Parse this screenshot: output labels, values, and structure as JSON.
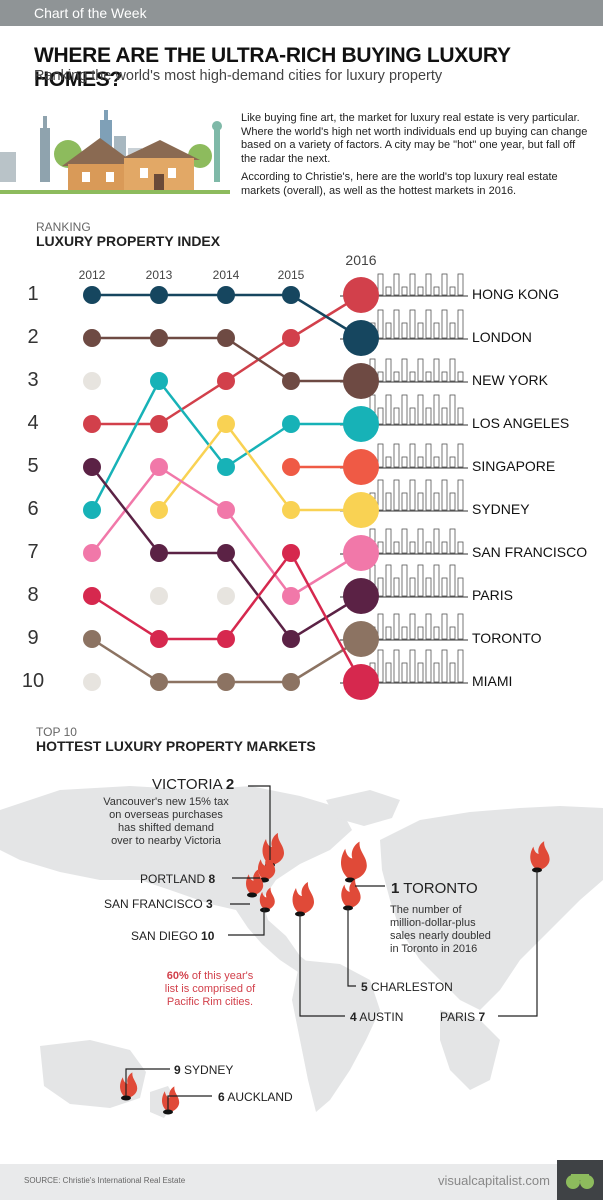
{
  "tag": "Chart of the Week",
  "title": "WHERE ARE THE ULTRA-RICH BUYING LUXURY HOMES?",
  "subtitle": "Ranking the world's most high-demand cities for luxury property",
  "intro": [
    "Like buying fine art, the market for luxury real estate is very particular. Where the world's high net worth individuals end up buying can change based on a variety of factors. A city may be \"hot\" one year, but fall off the radar the next.",
    "According to Christie's, here are the world's top luxury real estate markets (overall), as well as the hottest markets in 2016."
  ],
  "section1": {
    "kicker": "RANKING",
    "title": "LUXURY PROPERTY INDEX"
  },
  "section2": {
    "kicker": "TOP 10",
    "title": "HOTTEST LUXURY PROPERTY MARKETS"
  },
  "chart_data": [
    {
      "type": "line",
      "title": "LUXURY PROPERTY INDEX",
      "x": [
        "2012",
        "2013",
        "2014",
        "2015",
        "2016"
      ],
      "ranks": [
        "1",
        "2",
        "3",
        "4",
        "5",
        "6",
        "7",
        "8",
        "9",
        "10"
      ],
      "ylim": [
        1,
        10
      ],
      "series": [
        {
          "name": "HONG KONG",
          "color": "#d2404b",
          "values": [
            4,
            4,
            3,
            2,
            1
          ]
        },
        {
          "name": "LONDON",
          "color": "#16465f",
          "values": [
            1,
            1,
            1,
            1,
            2
          ]
        },
        {
          "name": "NEW YORK",
          "color": "#6e4a43",
          "values": [
            2,
            2,
            2,
            3,
            3
          ]
        },
        {
          "name": "LOS ANGELES",
          "color": "#17b2b7",
          "values": [
            6,
            3,
            5,
            4,
            4
          ]
        },
        {
          "name": "SINGAPORE",
          "color": "#ef5a45",
          "values": [
            null,
            null,
            null,
            5,
            5
          ]
        },
        {
          "name": "SYDNEY",
          "color": "#f9d253",
          "values": [
            null,
            6,
            4,
            6,
            6
          ]
        },
        {
          "name": "SAN FRANCISCO",
          "color": "#f178a9",
          "values": [
            7,
            5,
            6,
            8,
            7
          ]
        },
        {
          "name": "PARIS",
          "color": "#5b2245",
          "values": [
            5,
            7,
            7,
            9,
            8
          ]
        },
        {
          "name": "TORONTO",
          "color": "#8c7362",
          "values": [
            9,
            10,
            10,
            10,
            9
          ]
        },
        {
          "name": "MIAMI",
          "color": "#d6284e",
          "values": [
            8,
            9,
            9,
            7,
            10
          ]
        }
      ],
      "unranked": [
        [
          2012,
          3
        ],
        [
          2012,
          10
        ],
        [
          2013,
          8
        ],
        [
          2014,
          8
        ]
      ],
      "grid": true
    },
    {
      "type": "map",
      "title": "HOTTEST LUXURY PROPERTY MARKETS",
      "markets": [
        {
          "rank": 1,
          "city": "TORONTO"
        },
        {
          "rank": 2,
          "city": "VICTORIA"
        },
        {
          "rank": 3,
          "city": "SAN FRANCISCO"
        },
        {
          "rank": 4,
          "city": "AUSTIN"
        },
        {
          "rank": 5,
          "city": "CHARLESTON"
        },
        {
          "rank": 6,
          "city": "AUCKLAND"
        },
        {
          "rank": 7,
          "city": "PARIS"
        },
        {
          "rank": 8,
          "city": "PORTLAND"
        },
        {
          "rank": 9,
          "city": "SYDNEY"
        },
        {
          "rank": 10,
          "city": "SAN DIEGO"
        }
      ]
    }
  ],
  "labels": {
    "victoria": {
      "city": "VICTORIA",
      "rank": "2"
    },
    "victoria_note": [
      "Vancouver's new 15% tax",
      "on overseas purchases",
      "has shifted demand",
      "over to nearby Victoria"
    ],
    "portland": {
      "city": "PORTLAND",
      "rank": "8"
    },
    "sanfran": {
      "city": "SAN FRANCISCO",
      "rank": "3"
    },
    "sandiego": {
      "city": "SAN DIEGO",
      "rank": "10"
    },
    "toronto": {
      "city": "TORONTO",
      "rank": "1"
    },
    "toronto_note": [
      "The number of",
      "million-dollar-plus",
      "sales nearly doubled",
      "in Toronto in 2016"
    ],
    "charleston": {
      "city": "CHARLESTON",
      "rank": "5"
    },
    "austin": {
      "city": "AUSTIN",
      "rank": "4"
    },
    "paris": {
      "city": "PARIS",
      "rank": "7"
    },
    "sydney": {
      "city": "SYDNEY",
      "rank": "9"
    },
    "auckland": {
      "city": "AUCKLAND",
      "rank": "6"
    },
    "pacific_pct": "60%",
    "pacific_note": [
      "of this year's",
      "list is comprised of",
      "Pacific Rim cities."
    ]
  },
  "footer": {
    "source": "SOURCE: Christie's International Real Estate",
    "brand": "visualcapitalist.com"
  },
  "colors": {
    "accent": "#d2404b",
    "map": "#e4e5e6",
    "flame": "#e04a38"
  }
}
